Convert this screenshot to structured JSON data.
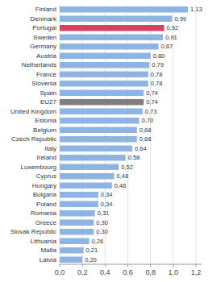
{
  "chart_data": {
    "type": "bar",
    "orientation": "horizontal",
    "categories": [
      "Finland",
      "Denmark",
      "Portugal",
      "Sweden",
      "Germany",
      "Austria",
      "Netherlands",
      "France",
      "Slovenia",
      "Spain",
      "EU27",
      "United Kingdom",
      "Estonia",
      "Belgium",
      "Czech Republic",
      "Italy",
      "Ireland",
      "Luxembourg",
      "Cyprus",
      "Hungary",
      "Bulgaria",
      "Poland",
      "Romania",
      "Greece",
      "Slovak Republic",
      "Lithuania",
      "Malta",
      "Latvia"
    ],
    "values": [
      1.13,
      0.99,
      0.92,
      0.91,
      0.87,
      0.8,
      0.79,
      0.78,
      0.78,
      0.74,
      0.74,
      0.73,
      0.7,
      0.68,
      0.68,
      0.64,
      0.58,
      0.52,
      0.48,
      0.46,
      0.34,
      0.34,
      0.31,
      0.3,
      0.3,
      0.26,
      0.21,
      0.2
    ],
    "value_labels": [
      "1,13",
      "0,99",
      "0,92",
      "0,91",
      "0,87",
      "0,80",
      "0,79",
      "0,78",
      "0,78",
      "0,74",
      "0,74",
      "0,73",
      "0,70",
      "0,68",
      "0,68",
      "0,64",
      "0,58",
      "0,52",
      "0,48",
      "0,46",
      "0,34",
      "0,34",
      "0,31",
      "0,30",
      "0,30",
      "0,26",
      "0,21",
      "0,20"
    ],
    "colors": [
      "#8db4e2",
      "#8db4e2",
      "#d94060",
      "#8db4e2",
      "#8db4e2",
      "#8db4e2",
      "#8db4e2",
      "#8db4e2",
      "#8db4e2",
      "#8db4e2",
      "#7f7f7f",
      "#8db4e2",
      "#8db4e2",
      "#8db4e2",
      "#8db4e2",
      "#8db4e2",
      "#8db4e2",
      "#8db4e2",
      "#8db4e2",
      "#8db4e2",
      "#8db4e2",
      "#8db4e2",
      "#8db4e2",
      "#8db4e2",
      "#8db4e2",
      "#8db4e2",
      "#8db4e2",
      "#8db4e2"
    ],
    "data_labels": true,
    "xlim": [
      0,
      1.25
    ],
    "xticks": [
      {
        "value": 0.0,
        "label": "0,0"
      },
      {
        "value": 0.2,
        "label": "0,2"
      },
      {
        "value": 0.4,
        "label": "0,4"
      },
      {
        "value": 0.6,
        "label": "0,6"
      },
      {
        "value": 0.8,
        "label": "0,8"
      },
      {
        "value": 1.0,
        "label": "1,0"
      },
      {
        "value": 1.2,
        "label": "1,2"
      }
    ],
    "grid": true
  }
}
